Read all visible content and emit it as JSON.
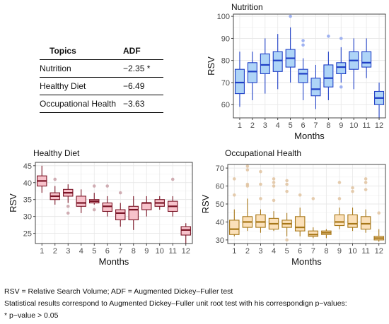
{
  "table": {
    "headers": [
      "Topics",
      "ADF"
    ],
    "rows": [
      {
        "topic": "Nutrition",
        "adf": "−2.35 *"
      },
      {
        "topic": "Healthy Diet",
        "adf": "−6.49"
      },
      {
        "topic": "Occupational Health",
        "adf": "−3.63"
      }
    ]
  },
  "captions": {
    "line1": "RSV = Relative Search Volume; ADF = Augmented Dickey–Fuller test",
    "line2": "Statistical results correspond to Augmented Dickey–Fuller unit root test with his correspondign p−values:",
    "line3": "* p−value > 0.05"
  },
  "chart_data": [
    {
      "type": "box",
      "title": "Nutrition",
      "xlabel": "Months",
      "ylabel": "RSV",
      "categories": [
        "1",
        "2",
        "3",
        "4",
        "5",
        "6",
        "7",
        "8",
        "9",
        "10",
        "11",
        "12"
      ],
      "ylim": [
        54,
        101
      ],
      "yticks": [
        60,
        70,
        80,
        90,
        100
      ],
      "grid": true,
      "colors": {
        "fill": "#aed4f7",
        "stroke": "#1f3fc6",
        "outlier": "#8fa6f0"
      },
      "boxes": [
        {
          "min": 59,
          "q1": 65,
          "median": 70,
          "q3": 76,
          "max": 84,
          "outliers": []
        },
        {
          "min": 62,
          "q1": 70,
          "median": 75,
          "q3": 79,
          "max": 84,
          "outliers": []
        },
        {
          "min": 65,
          "q1": 74,
          "median": 78,
          "q3": 83,
          "max": 90,
          "outliers": []
        },
        {
          "min": 67,
          "q1": 75,
          "median": 80,
          "q3": 84,
          "max": 92,
          "outliers": []
        },
        {
          "min": 70,
          "q1": 77,
          "median": 81,
          "q3": 85,
          "max": 95,
          "outliers": [
            100
          ]
        },
        {
          "min": 62,
          "q1": 70,
          "median": 74,
          "q3": 76,
          "max": 81,
          "outliers": [
            87,
            89
          ]
        },
        {
          "min": 58,
          "q1": 64,
          "median": 67,
          "q3": 72,
          "max": 78,
          "outliers": []
        },
        {
          "min": 62,
          "q1": 68,
          "median": 72,
          "q3": 78,
          "max": 84,
          "outliers": [
            91
          ]
        },
        {
          "min": 70,
          "q1": 74,
          "median": 77,
          "q3": 79,
          "max": 86,
          "outliers": [
            68,
            90
          ]
        },
        {
          "min": 67,
          "q1": 76,
          "median": 80,
          "q3": 84,
          "max": 90,
          "outliers": []
        },
        {
          "min": 72,
          "q1": 77,
          "median": 79,
          "q3": 84,
          "max": 90,
          "outliers": []
        },
        {
          "min": 54,
          "q1": 60,
          "median": 63,
          "q3": 66,
          "max": 70,
          "outliers": []
        }
      ]
    },
    {
      "type": "box",
      "title": "Healthy Diet",
      "xlabel": "Months",
      "ylabel": "RSV",
      "categories": [
        "1",
        "2",
        "3",
        "4",
        "5",
        "6",
        "7",
        "8",
        "9",
        "10",
        "11",
        "12"
      ],
      "ylim": [
        22,
        46
      ],
      "yticks": [
        25,
        30,
        35,
        40,
        45
      ],
      "grid": true,
      "colors": {
        "fill": "#f7c2cb",
        "stroke": "#7a1426",
        "outlier": "#c9a0a7"
      },
      "boxes": [
        {
          "min": 37,
          "q1": 39,
          "median": 40.5,
          "q3": 42,
          "max": 45,
          "outliers": []
        },
        {
          "min": 33.5,
          "q1": 35,
          "median": 36,
          "q3": 37,
          "max": 39,
          "outliers": [
            41
          ]
        },
        {
          "min": 34,
          "q1": 36,
          "median": 37,
          "q3": 38,
          "max": 39.5,
          "outliers": [
            31,
            33
          ]
        },
        {
          "min": 31,
          "q1": 33,
          "median": 34,
          "q3": 36,
          "max": 38,
          "outliers": []
        },
        {
          "min": 33.5,
          "q1": 34,
          "median": 34.5,
          "q3": 35,
          "max": 37,
          "outliers": [
            32,
            39
          ]
        },
        {
          "min": 30,
          "q1": 31.5,
          "median": 33,
          "q3": 34,
          "max": 36,
          "outliers": [
            39
          ]
        },
        {
          "min": 27,
          "q1": 29,
          "median": 31,
          "q3": 32,
          "max": 34,
          "outliers": [
            37
          ]
        },
        {
          "min": 26,
          "q1": 29,
          "median": 32,
          "q3": 33,
          "max": 36,
          "outliers": []
        },
        {
          "min": 30,
          "q1": 32,
          "median": 34,
          "q3": 34,
          "max": 36,
          "outliers": []
        },
        {
          "min": 32,
          "q1": 33,
          "median": 34,
          "q3": 35,
          "max": 36,
          "outliers": []
        },
        {
          "min": 30,
          "q1": 31.5,
          "median": 33,
          "q3": 34.5,
          "max": 36,
          "outliers": [
            41
          ]
        },
        {
          "min": 22,
          "q1": 24.5,
          "median": 26,
          "q3": 27,
          "max": 28,
          "outliers": []
        }
      ]
    },
    {
      "type": "box",
      "title": "Occupational Health",
      "xlabel": "Months",
      "ylabel": "RSV",
      "categories": [
        "1",
        "2",
        "3",
        "4",
        "5",
        "6",
        "7",
        "8",
        "9",
        "10",
        "11",
        "12"
      ],
      "ylim": [
        28,
        72
      ],
      "yticks": [
        30,
        40,
        50,
        60,
        70
      ],
      "grid": true,
      "colors": {
        "fill": "#fbe0b9",
        "stroke": "#a77718",
        "outlier": "#e0c3a0"
      },
      "boxes": [
        {
          "min": 32,
          "q1": 33,
          "median": 36,
          "q3": 41,
          "max": 47,
          "outliers": [
            55,
            64
          ]
        },
        {
          "min": 35,
          "q1": 37,
          "median": 40,
          "q3": 43,
          "max": 53,
          "outliers": [
            60,
            61,
            69,
            71
          ]
        },
        {
          "min": 34,
          "q1": 37,
          "median": 40,
          "q3": 44,
          "max": 47,
          "outliers": [
            53,
            61,
            68
          ]
        },
        {
          "min": 35,
          "q1": 36,
          "median": 39,
          "q3": 42,
          "max": 46,
          "outliers": [
            52,
            60,
            62,
            64
          ]
        },
        {
          "min": 32,
          "q1": 37,
          "median": 39,
          "q3": 41,
          "max": 45,
          "outliers": [
            30,
            57,
            61,
            63
          ]
        },
        {
          "min": 32,
          "q1": 35,
          "median": 37,
          "q3": 43,
          "max": 48,
          "outliers": [
            55
          ]
        },
        {
          "min": 31,
          "q1": 32,
          "median": 33,
          "q3": 35,
          "max": 37,
          "outliers": [
            53
          ]
        },
        {
          "min": 31,
          "q1": 33,
          "median": 34,
          "q3": 35,
          "max": 36,
          "outliers": []
        },
        {
          "min": 36,
          "q1": 38,
          "median": 40,
          "q3": 44,
          "max": 48,
          "outliers": [
            53,
            62
          ]
        },
        {
          "min": 35,
          "q1": 37,
          "median": 39,
          "q3": 44,
          "max": 48,
          "outliers": [
            57,
            59
          ]
        },
        {
          "min": 34,
          "q1": 36,
          "median": 39,
          "q3": 43,
          "max": 47,
          "outliers": [
            58,
            62,
            64
          ]
        },
        {
          "min": 29,
          "q1": 30,
          "median": 31,
          "q3": 32,
          "max": 36,
          "outliers": [
            45
          ]
        }
      ]
    }
  ]
}
